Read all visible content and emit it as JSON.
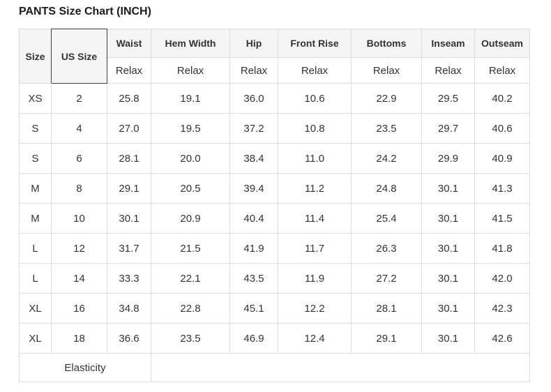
{
  "page": {
    "title": "PANTS Size Chart (INCH)"
  },
  "colors": {
    "selected_column_bg": "#3d3d3d",
    "selected_column_text": "#ffffff",
    "header_bg": "#f5f5f5",
    "border": "#dddddd",
    "text": "#333333",
    "title_text": "#1b1b1b",
    "cell_bg": "#ffffff"
  },
  "table": {
    "corner": {
      "size": "Size",
      "us_size": "US Size"
    },
    "measure_headers": [
      "Waist",
      "Hem Width",
      "Hip",
      "Front Rise",
      "Bottoms",
      "Inseam",
      "Outseam"
    ],
    "fit_row": [
      "Relax",
      "Relax",
      "Relax",
      "Relax",
      "Relax",
      "Relax",
      "Relax"
    ],
    "rows": [
      {
        "size": "XS",
        "us_size": "2",
        "values": [
          "25.8",
          "19.1",
          "36.0",
          "10.6",
          "22.9",
          "29.5",
          "40.2"
        ]
      },
      {
        "size": "S",
        "us_size": "4",
        "values": [
          "27.0",
          "19.5",
          "37.2",
          "10.8",
          "23.5",
          "29.7",
          "40.6"
        ]
      },
      {
        "size": "S",
        "us_size": "6",
        "values": [
          "28.1",
          "20.0",
          "38.4",
          "11.0",
          "24.2",
          "29.9",
          "40.9"
        ]
      },
      {
        "size": "M",
        "us_size": "8",
        "values": [
          "29.1",
          "20.5",
          "39.4",
          "11.2",
          "24.8",
          "30.1",
          "41.3"
        ]
      },
      {
        "size": "M",
        "us_size": "10",
        "values": [
          "30.1",
          "20.9",
          "40.4",
          "11.4",
          "25.4",
          "30.1",
          "41.5"
        ]
      },
      {
        "size": "L",
        "us_size": "12",
        "values": [
          "31.7",
          "21.5",
          "41.9",
          "11.7",
          "26.3",
          "30.1",
          "41.8"
        ]
      },
      {
        "size": "L",
        "us_size": "14",
        "values": [
          "33.3",
          "22.1",
          "43.5",
          "11.9",
          "27.2",
          "30.1",
          "42.0"
        ]
      },
      {
        "size": "XL",
        "us_size": "16",
        "values": [
          "34.8",
          "22.8",
          "45.1",
          "12.2",
          "28.1",
          "30.1",
          "42.3"
        ]
      },
      {
        "size": "XL",
        "us_size": "18",
        "values": [
          "36.6",
          "23.5",
          "46.9",
          "12.4",
          "29.1",
          "30.1",
          "42.6"
        ]
      }
    ],
    "footer": {
      "label": "Elasticity",
      "value": ""
    }
  }
}
